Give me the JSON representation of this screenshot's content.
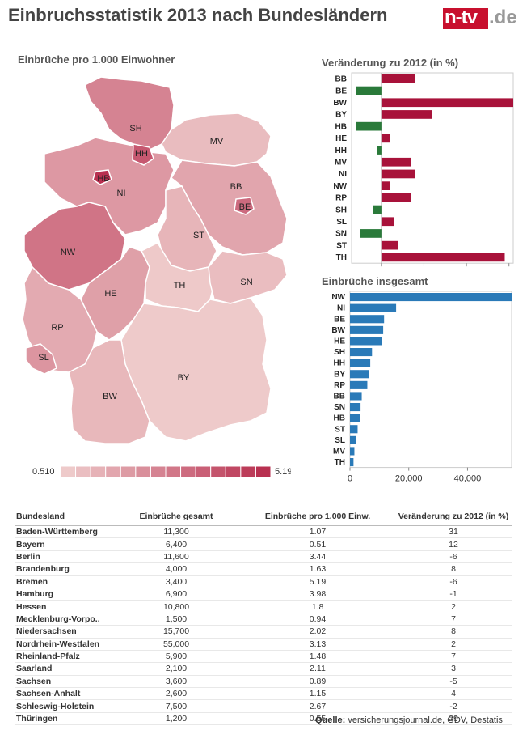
{
  "title": "Einbruchsstatistik 2013 nach Bundesländern",
  "logo": {
    "brand": "n-tv",
    "suffix": ".de"
  },
  "map": {
    "subtitle": "Einbrüche pro 1.000 Einwohner",
    "legend": {
      "min": "0.510",
      "max": "5.190",
      "low_color": "#eecaca",
      "high_color": "#b83050",
      "steps": 14
    },
    "regions": [
      {
        "code": "SH",
        "value": 2.67
      },
      {
        "code": "HH",
        "value": 3.98
      },
      {
        "code": "MV",
        "value": 0.94
      },
      {
        "code": "HB",
        "value": 5.19
      },
      {
        "code": "NI",
        "value": 2.02
      },
      {
        "code": "BB",
        "value": 1.63
      },
      {
        "code": "BE",
        "value": 3.44
      },
      {
        "code": "ST",
        "value": 1.15
      },
      {
        "code": "NW",
        "value": 3.13
      },
      {
        "code": "TH",
        "value": 0.55
      },
      {
        "code": "SN",
        "value": 0.89
      },
      {
        "code": "HE",
        "value": 1.8
      },
      {
        "code": "RP",
        "value": 1.48
      },
      {
        "code": "SL",
        "value": 2.11
      },
      {
        "code": "BY",
        "value": 0.51
      },
      {
        "code": "BW",
        "value": 1.07
      }
    ]
  },
  "chart_data": [
    {
      "type": "bar",
      "orientation": "horizontal",
      "title": "Veränderung zu 2012 (in %)",
      "categories": [
        "BB",
        "BE",
        "BW",
        "BY",
        "HB",
        "HE",
        "HH",
        "MV",
        "NI",
        "NW",
        "RP",
        "SH",
        "SL",
        "SN",
        "ST",
        "TH"
      ],
      "values": [
        8,
        -6,
        31,
        12,
        -6,
        2,
        -1,
        7,
        8,
        2,
        7,
        -2,
        3,
        -5,
        4,
        29
      ],
      "xlim": [
        -7,
        31
      ],
      "xticks": [
        "0",
        "10",
        "20",
        "30"
      ],
      "colors": {
        "positive": "#a8123a",
        "negative": "#2a7a3a"
      }
    },
    {
      "type": "bar",
      "orientation": "horizontal",
      "title": "Einbrüche insgesamt",
      "categories": [
        "NW",
        "NI",
        "BE",
        "BW",
        "HE",
        "SH",
        "HH",
        "BY",
        "RP",
        "BB",
        "SN",
        "HB",
        "ST",
        "SL",
        "MV",
        "TH"
      ],
      "values": [
        55000,
        15700,
        11600,
        11300,
        10800,
        7500,
        6900,
        6400,
        5900,
        4000,
        3600,
        3400,
        2600,
        2100,
        1500,
        1200
      ],
      "xlim": [
        0,
        55000
      ],
      "xticks": [
        "0",
        "20,000",
        "40,000"
      ],
      "colors": {
        "bar": "#2a7ab8"
      }
    }
  ],
  "table": {
    "headers": [
      "Bundesland",
      "Einbrüche gesamt",
      "Einbrüche pro 1.000 Einw.",
      "Veränderung zu 2012 (in %)"
    ],
    "rows": [
      [
        "Baden-Württemberg",
        "11,300",
        "1.07",
        "31"
      ],
      [
        "Bayern",
        "6,400",
        "0.51",
        "12"
      ],
      [
        "Berlin",
        "11,600",
        "3.44",
        "-6"
      ],
      [
        "Brandenburg",
        "4,000",
        "1.63",
        "8"
      ],
      [
        "Bremen",
        "3,400",
        "5.19",
        "-6"
      ],
      [
        "Hamburg",
        "6,900",
        "3.98",
        "-1"
      ],
      [
        "Hessen",
        "10,800",
        "1.8",
        "2"
      ],
      [
        "Mecklenburg-Vorpo..",
        "1,500",
        "0.94",
        "7"
      ],
      [
        "Niedersachsen",
        "15,700",
        "2.02",
        "8"
      ],
      [
        "Nordrhein-Westfalen",
        "55,000",
        "3.13",
        "2"
      ],
      [
        "Rheinland-Pfalz",
        "5,900",
        "1.48",
        "7"
      ],
      [
        "Saarland",
        "2,100",
        "2.11",
        "3"
      ],
      [
        "Sachsen",
        "3,600",
        "0.89",
        "-5"
      ],
      [
        "Sachsen-Anhalt",
        "2,600",
        "1.15",
        "4"
      ],
      [
        "Schleswig-Holstein",
        "7,500",
        "2.67",
        "-2"
      ],
      [
        "Thüringen",
        "1,200",
        "0.55",
        "29"
      ]
    ]
  },
  "source": {
    "label": "Quelle:",
    "text": "versicherungsjournal.de, GDV, Destatis"
  }
}
